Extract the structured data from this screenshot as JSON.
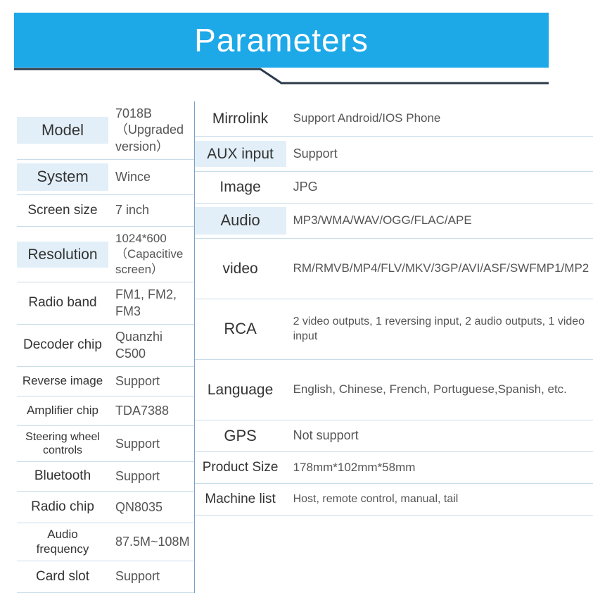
{
  "title": "Parameters",
  "colors": {
    "banner_bg": "#1da8e8",
    "banner_text": "#ffffff",
    "shade_bg": "#e2eff8",
    "divider": "#7aa2c4",
    "row_border": "#c9dce9",
    "label_text": "#333333",
    "value_text": "#555555",
    "line_stroke": "#2b3a4a"
  },
  "left": [
    {
      "label": "Model",
      "value": "7018B（Upgraded version）",
      "shade": true,
      "h": "h-lg",
      "lfs": "fs-22",
      "vfs": "fs-v18"
    },
    {
      "label": "System",
      "value": "Wince",
      "shade": true,
      "h": "h-lg",
      "lfs": "fs-22",
      "vfs": "fs-v18"
    },
    {
      "label": "Screen size",
      "value": "7 inch",
      "shade": false,
      "h": "h-md",
      "lfs": "fs-19",
      "vfs": "fs-v18"
    },
    {
      "label": "Resolution",
      "value": "1024*600（Capacitive screen）",
      "shade": true,
      "h": "h-lg",
      "lfs": "fs-21",
      "vfs": "fs-v17"
    },
    {
      "label": "Radio band",
      "value": "FM1, FM2, FM3",
      "shade": false,
      "h": "h-md",
      "lfs": "fs-19",
      "vfs": "fs-v18"
    },
    {
      "label": "Decoder chip",
      "value": "Quanzhi C500",
      "shade": false,
      "h": "h-md",
      "lfs": "fs-19",
      "vfs": "fs-v18"
    },
    {
      "label": "Reverse image",
      "value": "Support",
      "shade": false,
      "h": "h-sm",
      "lfs": "fs-17",
      "vfs": "fs-v18"
    },
    {
      "label": "Amplifier chip",
      "value": "TDA7388",
      "shade": false,
      "h": "h-sm",
      "lfs": "fs-17",
      "vfs": "fs-v18"
    },
    {
      "label": "Steering wheel controls",
      "value": "Support",
      "shade": false,
      "h": "h-sm",
      "lfs": "fs-16",
      "vfs": "fs-v18"
    },
    {
      "label": "Bluetooth",
      "value": "Support",
      "shade": false,
      "h": "h-sm",
      "lfs": "fs-19",
      "vfs": "fs-v18"
    },
    {
      "label": "Radio chip",
      "value": "QN8035",
      "shade": false,
      "h": "h-md",
      "lfs": "fs-19",
      "vfs": "fs-v18"
    },
    {
      "label": "Audio frequency",
      "value": "87.5M~108M",
      "shade": false,
      "h": "h-md",
      "lfs": "fs-17",
      "vfs": "fs-v18"
    },
    {
      "label": "Card slot",
      "value": "Support",
      "shade": false,
      "h": "h-md",
      "lfs": "fs-19",
      "vfs": "fs-v18"
    }
  ],
  "right": [
    {
      "label": "Mirrolink",
      "value": "Support Android/IOS Phone",
      "shade": false,
      "h": "h-lg",
      "lfs": "fs-21",
      "vfs": "fs-v17",
      "span": 1
    },
    {
      "label": "AUX input",
      "value": "Support",
      "shade": true,
      "h": "h-lg",
      "lfs": "fs-21",
      "vfs": "fs-v18",
      "span": 1
    },
    {
      "label": "Image",
      "value": "JPG",
      "shade": false,
      "h": "h-md",
      "lfs": "fs-21",
      "vfs": "fs-v18",
      "span": 1
    },
    {
      "label": "Audio",
      "value": "MP3/WMA/WAV/OGG/FLAC/APE",
      "shade": true,
      "h": "h-lg",
      "lfs": "fs-22",
      "vfs": "fs-v17",
      "span": 1
    },
    {
      "label": "video",
      "value": "RM/RMVB/MP4/FLV/MKV/3GP/AVI/ASF/SWFMP1/MP2",
      "shade": false,
      "h": "",
      "lfs": "fs-21",
      "vfs": "fs-v17",
      "span": 2
    },
    {
      "label": "RCA",
      "value": "2 video outputs, 1 reversing input, 2 audio outputs, 1 video input",
      "shade": false,
      "h": "",
      "lfs": "fs-22",
      "vfs": "fs-v16",
      "span": 2
    },
    {
      "label": "Language",
      "value": "English, Chinese, French, Portuguese,Spanish, etc.",
      "shade": false,
      "h": "",
      "lfs": "fs-21",
      "vfs": "fs-v17",
      "span": 2
    },
    {
      "label": "GPS",
      "value": "Not support",
      "shade": false,
      "h": "h-md",
      "lfs": "fs-22",
      "vfs": "fs-v18",
      "span": 1
    },
    {
      "label": "Product Size",
      "value": "178mm*102mm*58mm",
      "shade": false,
      "h": "h-md",
      "lfs": "fs-19",
      "vfs": "fs-v17",
      "span": 1
    },
    {
      "label": "Machine list",
      "value": "Host, remote control, manual, tail",
      "shade": false,
      "h": "h-md",
      "lfs": "fs-19",
      "vfs": "fs-v16",
      "span": 1
    }
  ],
  "right_span_heights": {
    "2": 86,
    "default": null
  }
}
